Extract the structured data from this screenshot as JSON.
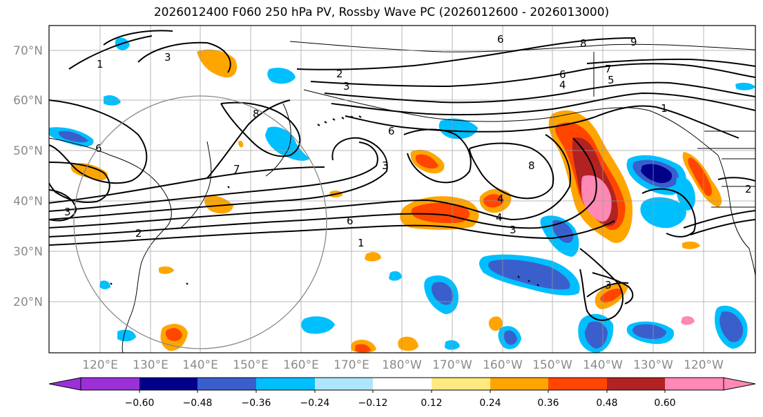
{
  "title": "2026012400 F060 250 hPa PV, Rossby Wave PC (2026012600 - 2026013000)",
  "map": {
    "lat_ticks": [
      "70°N",
      "60°N",
      "50°N",
      "40°N",
      "30°N",
      "20°N"
    ],
    "lon_ticks": [
      "120°E",
      "130°E",
      "140°E",
      "150°E",
      "160°E",
      "170°E",
      "180°W",
      "170°W",
      "160°W",
      "150°W",
      "140°W",
      "130°W",
      "120°W"
    ],
    "contour_labels": [
      "3",
      "1",
      "2",
      "3",
      "6",
      "8",
      "3",
      "6",
      "8",
      "6",
      "4",
      "3",
      "7",
      "5",
      "4",
      "1",
      "9",
      "8",
      "7",
      "6",
      "1",
      "3",
      "4",
      "3",
      "2",
      "6",
      "2"
    ],
    "land_color": "#000000",
    "grid_color": "#999999",
    "circle_color": "#888888"
  },
  "colorbar": {
    "ticks": [
      "−0.60",
      "−0.48",
      "−0.36",
      "−0.24",
      "−0.12",
      "0.12",
      "0.24",
      "0.36",
      "0.48",
      "0.60"
    ],
    "colors": [
      "#9b30d9",
      "#00008b",
      "#3a5fcd",
      "#00bfff",
      "#aee6ff",
      "#ffffff",
      "#ffea80",
      "#ffa500",
      "#ff4500",
      "#b22222",
      "#ff88b4"
    ]
  }
}
